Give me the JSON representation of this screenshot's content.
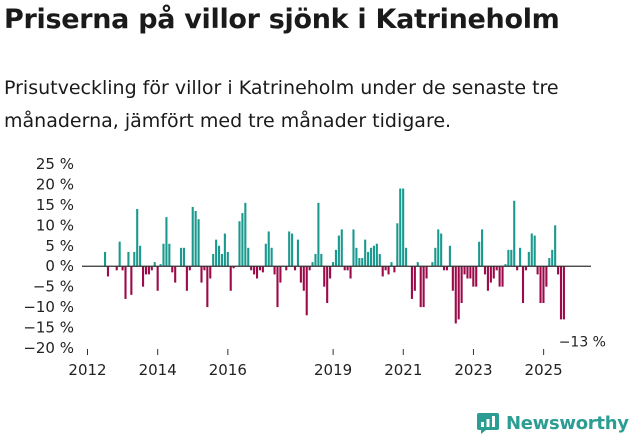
{
  "header": {
    "title": "Priserna på villor sjönk i Katrineholm",
    "subtitle": "Prisutveckling för villor i Katrineholm under de senaste tre månaderna, jämfört med tre månader tidigare."
  },
  "brand": {
    "name": "Newsworthy",
    "icon": "newsworthy-logo-icon"
  },
  "colors": {
    "positive": "#1a9a8f",
    "negative": "#9c0a49",
    "axis": "#333333",
    "text": "#222222"
  },
  "chart_data": {
    "type": "bar",
    "title": "Priserna på villor sjönk i Katrineholm",
    "xlabel": "",
    "ylabel": "",
    "ylim": [
      -20,
      25
    ],
    "yticks": [
      {
        "value": 25,
        "label": "25 %"
      },
      {
        "value": 20,
        "label": "20 %"
      },
      {
        "value": 15,
        "label": "15 %"
      },
      {
        "value": 10,
        "label": "10 %"
      },
      {
        "value": 5,
        "label": "5 %"
      },
      {
        "value": 0,
        "label": "0 %"
      },
      {
        "value": -5,
        "label": "−5 %"
      },
      {
        "value": -10,
        "label": "−10 %"
      },
      {
        "value": -15,
        "label": "−15 %"
      },
      {
        "value": -20,
        "label": "−20 %"
      }
    ],
    "xrange": [
      2011.9,
      2026.35
    ],
    "xticks": [
      {
        "value": 2012,
        "label": "2012"
      },
      {
        "value": 2014,
        "label": "2014"
      },
      {
        "value": 2016,
        "label": "2016"
      },
      {
        "value": 2019,
        "label": "2019"
      },
      {
        "value": 2021,
        "label": "2021"
      },
      {
        "value": 2023,
        "label": "2023"
      },
      {
        "value": 2025,
        "label": "2025"
      }
    ],
    "start": 2012.5,
    "step": 0.0833,
    "values": [
      3.5,
      -2.5,
      0,
      0,
      -1,
      6,
      -1,
      -8,
      3.5,
      -7,
      3.5,
      14,
      5,
      -5,
      -2,
      -2,
      -1,
      1,
      -6,
      0.5,
      5.5,
      12,
      5.5,
      -1.5,
      -4,
      0,
      4.5,
      4.5,
      -6,
      -1,
      14.5,
      13.5,
      11.5,
      -4,
      -1,
      -10,
      -3,
      3,
      6.5,
      5,
      3,
      8,
      3.5,
      -6,
      -0.5,
      0,
      11,
      13,
      15.5,
      4.5,
      -1,
      -2,
      -3,
      -1,
      -1.5,
      5.5,
      8.5,
      4.5,
      -2,
      -10,
      -4,
      0,
      -1,
      8.5,
      8,
      -1,
      6.5,
      -4,
      -6,
      -12,
      -1,
      1,
      3,
      15.5,
      3,
      -5,
      -9,
      -3,
      1,
      4,
      7.5,
      9,
      -1,
      -1,
      -3,
      9,
      4.5,
      2,
      2,
      6.5,
      3.5,
      4.5,
      5,
      5.5,
      3,
      -2.5,
      -1,
      -2,
      1,
      -1.5,
      10.5,
      19,
      19,
      4.5,
      0,
      -8,
      -6,
      1,
      -10,
      -10,
      -3,
      0,
      1,
      4.5,
      9,
      8,
      -1,
      -1,
      5,
      -6,
      -14,
      -13,
      -9,
      -2,
      -3,
      -3,
      -5,
      -5,
      6,
      9,
      -2,
      -6,
      -4,
      -3,
      -1,
      -5,
      -5,
      0.5,
      4,
      4,
      16,
      -1,
      4.5,
      -9,
      -1,
      3.5,
      8,
      7.5,
      -2,
      -9,
      -9,
      -5,
      2,
      4,
      10,
      -2,
      -13,
      -13
    ],
    "annotations": [
      {
        "text": "−13 %",
        "target": "last"
      }
    ]
  }
}
